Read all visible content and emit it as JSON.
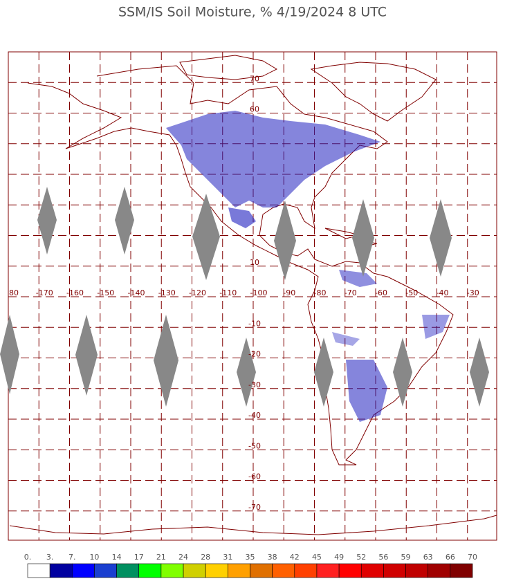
{
  "title": "SSM/IS Soil Moisture, % 4/19/2024 8 UTC",
  "map": {
    "lat_labels": [
      "70",
      "60",
      "10",
      "-10",
      "-20",
      "-30",
      "-40",
      "-50",
      "-60",
      "-70"
    ],
    "lon_labels": [
      "80",
      "-170",
      "-160",
      "-150",
      "-140",
      "-130",
      "-120",
      "-110",
      "-100",
      "-90",
      "-80",
      "-70",
      "-60",
      "-50",
      "-40",
      "-30"
    ]
  },
  "colorbar": {
    "labels": [
      "0.",
      "3.",
      "7.",
      "10",
      "14",
      "17",
      "21",
      "24",
      "28",
      "31",
      "35",
      "38",
      "42",
      "45",
      "49",
      "52",
      "56",
      "59",
      "63",
      "66",
      "70"
    ],
    "colors": [
      "#ffffff",
      "#0000a0",
      "#0000ff",
      "#1a3fd0",
      "#009060",
      "#00ff00",
      "#80ff00",
      "#d0d000",
      "#ffd000",
      "#ffa000",
      "#e07000",
      "#ff6000",
      "#ff4000",
      "#ff2020",
      "#ff0000",
      "#e00000",
      "#d00000",
      "#c00000",
      "#a00000",
      "#800000"
    ]
  }
}
